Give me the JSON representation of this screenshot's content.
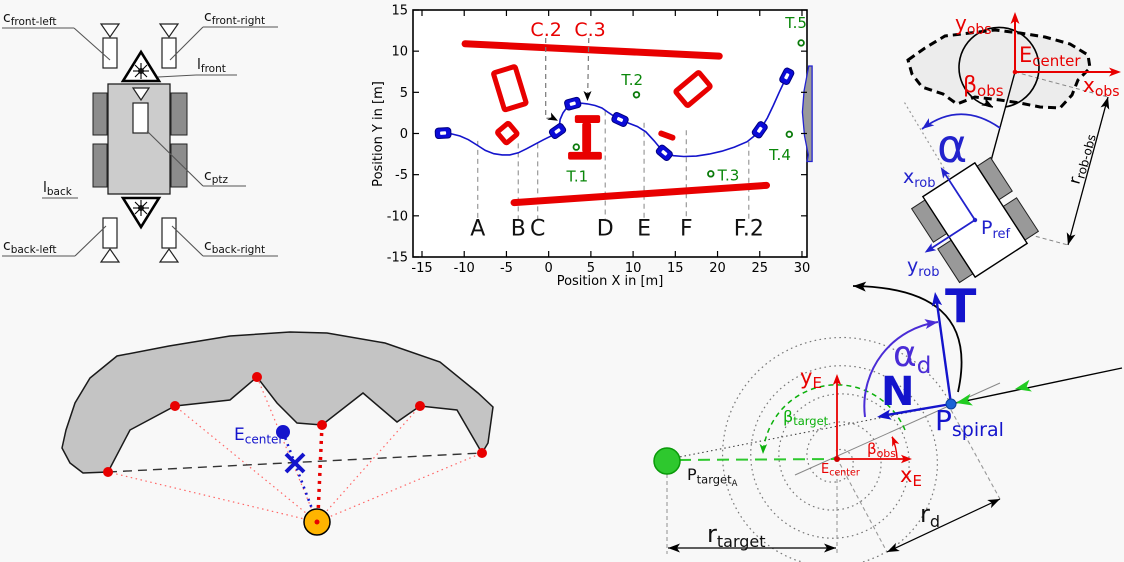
{
  "background": "#f8f8f8",
  "colors": {
    "red": "#e80000",
    "path_blue": "#1414cc",
    "marker_blue": "#0b0bd8",
    "green": "#0a870a",
    "bright_green": "#22cc22",
    "purple": "#4a2cd6",
    "orange": "#ffb400",
    "blob_gray": "#c4c4c4",
    "region_gray": "#9a9a9a",
    "dash_gray": "#999999"
  },
  "robot_top_view": {
    "labels": {
      "c_front_left": {
        "main": "c",
        "sub": "front-left"
      },
      "c_front_right": {
        "main": "c",
        "sub": "front-right"
      },
      "l_front": {
        "main": "l",
        "sub": "front"
      },
      "c_ptz": {
        "main": "c",
        "sub": "ptz"
      },
      "l_back": {
        "main": "l",
        "sub": "back"
      },
      "c_back_left": {
        "main": "c",
        "sub": "back-left"
      },
      "c_back_right": {
        "main": "c",
        "sub": "back-right"
      }
    }
  },
  "chart_data": {
    "type": "line",
    "title": "",
    "xlabel": "Position X in [m]",
    "ylabel": "Position Y in [m]",
    "xlim": [
      -16.1,
      30.6
    ],
    "ylim": [
      -15,
      15
    ],
    "grid": false,
    "x_ticks": [
      -15,
      -10,
      -5,
      0,
      5,
      10,
      15,
      20,
      25,
      30
    ],
    "y_ticks": [
      15,
      10,
      5,
      0,
      -5,
      -10,
      -15
    ],
    "trajectory": [
      [
        -12.5,
        0.05
      ],
      [
        -11.5,
        -0.05
      ],
      [
        -10.5,
        -0.3
      ],
      [
        -9.5,
        -0.75
      ],
      [
        -8.5,
        -1.4
      ],
      [
        -7.5,
        -2.05
      ],
      [
        -6.5,
        -2.45
      ],
      [
        -5.5,
        -2.6
      ],
      [
        -4.6,
        -2.6
      ],
      [
        -3.6,
        -2.35
      ],
      [
        -2.6,
        -1.85
      ],
      [
        -1.6,
        -1.3
      ],
      [
        -0.6,
        -0.75
      ],
      [
        0.4,
        -0.25
      ],
      [
        1.1,
        0.15
      ],
      [
        1.45,
        0.6
      ],
      [
        1.3,
        1.1
      ],
      [
        1.35,
        1.7
      ],
      [
        1.7,
        2.5
      ],
      [
        2.2,
        3.2
      ],
      [
        2.9,
        3.65
      ],
      [
        3.7,
        3.7
      ],
      [
        4.6,
        3.6
      ],
      [
        5.5,
        3.4
      ],
      [
        6.3,
        3.1
      ],
      [
        7.0,
        2.6
      ],
      [
        7.8,
        2.05
      ],
      [
        8.6,
        1.65
      ],
      [
        9.5,
        1.25
      ],
      [
        10.5,
        0.85
      ],
      [
        11.5,
        0.2
      ],
      [
        12.5,
        -0.9
      ],
      [
        13.3,
        -1.9
      ],
      [
        13.9,
        -2.45
      ],
      [
        14.8,
        -2.7
      ],
      [
        16.0,
        -2.8
      ],
      [
        17.5,
        -2.75
      ],
      [
        19.0,
        -2.5
      ],
      [
        20.5,
        -2.15
      ],
      [
        22.0,
        -1.65
      ],
      [
        23.5,
        -1.0
      ],
      [
        24.6,
        -0.1
      ],
      [
        25.2,
        0.7
      ],
      [
        25.9,
        1.9
      ],
      [
        26.6,
        3.4
      ],
      [
        27.3,
        5.0
      ],
      [
        27.9,
        6.3
      ],
      [
        28.3,
        7.0
      ]
    ],
    "robot_markers": [
      {
        "x": -12.5,
        "y": 0.05,
        "angle": -3
      },
      {
        "x": 1.05,
        "y": 0.3,
        "angle": -35
      },
      {
        "x": 2.85,
        "y": 3.62,
        "angle": -15
      },
      {
        "x": 8.45,
        "y": 1.7,
        "angle": 25
      },
      {
        "x": 13.7,
        "y": -2.35,
        "angle": 40
      },
      {
        "x": 25.0,
        "y": 0.45,
        "angle": -55
      },
      {
        "x": 28.2,
        "y": 6.95,
        "angle": -63
      }
    ],
    "targets": [
      {
        "label": "T.1",
        "x": 3.27,
        "y": -1.65,
        "label_x": 3.4,
        "label_y": -5.2
      },
      {
        "label": "T.2",
        "x": 10.4,
        "y": 4.7,
        "label_x": 9.9,
        "label_y": 6.5
      },
      {
        "label": "T.3",
        "x": 19.2,
        "y": -4.9,
        "label_x": 21.3,
        "label_y": -5.1
      },
      {
        "label": "T.4",
        "x": 28.5,
        "y": -0.1,
        "label_x": 27.4,
        "label_y": -2.6
      },
      {
        "label": "T.5",
        "x": 29.9,
        "y": 11.0,
        "label_x": 29.3,
        "label_y": 13.4
      }
    ],
    "camera_annotations": [
      {
        "label": "C.2",
        "label_x": -0.3,
        "label_y": 12.6,
        "line": [
          [
            -0.35,
            11.6
          ],
          [
            -0.35,
            1.85
          ],
          [
            0.7,
            1.85
          ]
        ],
        "arrow": {
          "x": 1.1,
          "y": 1.55,
          "angle": 28
        }
      },
      {
        "label": "C.3",
        "label_x": 4.9,
        "label_y": 12.6,
        "line": [
          [
            4.75,
            11.6
          ],
          [
            4.62,
            4.5
          ]
        ],
        "arrow": {
          "x": 4.6,
          "y": 3.95,
          "angle": 90
        }
      }
    ],
    "sections": [
      {
        "label": "A",
        "x": -8.4,
        "top": -0.9
      },
      {
        "label": "B",
        "x": -3.6,
        "top": -1.2
      },
      {
        "label": "C",
        "x": -1.3,
        "top": -1.2
      },
      {
        "label": "D",
        "x": 6.7,
        "top": 2.8
      },
      {
        "label": "E",
        "x": 11.3,
        "top": 1.3
      },
      {
        "label": "F",
        "x": 16.3,
        "top": 0.4
      },
      {
        "label": "F.2",
        "x": 23.7,
        "top": -1.0
      }
    ],
    "sections_bottom": -10.4,
    "sections_label_y": -12.4,
    "obstacles": {
      "walls": [
        {
          "x1": -9.9,
          "y1": 10.9,
          "x2": 20.2,
          "y2": 9.4
        },
        {
          "x1": -4.1,
          "y1": -8.4,
          "x2": 25.8,
          "y2": -6.3
        }
      ],
      "outlined_rects": [
        {
          "cx": -4.6,
          "cy": 5.5,
          "w": 2.7,
          "h": 4.7,
          "rot": -17
        },
        {
          "cx": -4.9,
          "cy": 0.05,
          "w": 1.75,
          "h": 1.75,
          "rot": -40
        },
        {
          "cx": 17.1,
          "cy": 5.4,
          "w": 3.6,
          "h": 2.3,
          "rot": -40
        }
      ],
      "filled_bars": [
        {
          "cx": 14.0,
          "cy": -0.25,
          "w": 2.1,
          "h": 0.7,
          "rot": 20
        }
      ],
      "ibeam": [
        {
          "cx": 4.6,
          "cy": 1.75,
          "w": 3.0,
          "h": 0.95
        },
        {
          "cx": 4.5,
          "cy": -0.5,
          "w": 1.05,
          "h": 3.6
        },
        {
          "cx": 4.3,
          "cy": -2.7,
          "w": 4.0,
          "h": 0.95
        }
      ],
      "shaded_region": [
        [
          30.8,
          8.2
        ],
        [
          30.25,
          5.2
        ],
        [
          30.05,
          2.6
        ],
        [
          30.3,
          -0.3
        ],
        [
          30.75,
          -2.6
        ],
        [
          30.6,
          -3.4
        ],
        [
          31.2,
          -3.4
        ],
        [
          31.2,
          8.2
        ]
      ]
    }
  },
  "obstacle_frame_diagram": {
    "labels": {
      "y_obs": {
        "main": "y",
        "sub": "obs"
      },
      "x_obs": {
        "main": "x",
        "sub": "obs"
      },
      "E_center": {
        "main": "E",
        "sub": "center"
      },
      "beta_obs": {
        "main": "β",
        "sub": "obs"
      },
      "alpha": "α",
      "x_rob": {
        "main": "x",
        "sub": "rob"
      },
      "y_rob": {
        "main": "y",
        "sub": "rob"
      },
      "P_ref": {
        "main": "P",
        "sub": "ref"
      },
      "r_rob_obs": {
        "main": "r",
        "sub": "rob-obs"
      }
    }
  },
  "tangent_diagram": {
    "labels": {
      "E_center": {
        "main": "E",
        "sub": "center"
      }
    }
  },
  "spiral_diagram": {
    "labels": {
      "y_E": {
        "main": "y",
        "sub": "E"
      },
      "x_E": {
        "main": "x",
        "sub": "E"
      },
      "E_center": {
        "main": "E",
        "sub": "center"
      },
      "beta_target": {
        "main": "β",
        "sub": "target"
      },
      "beta_obs": {
        "main": "β",
        "sub": "obs"
      },
      "P_spiral": {
        "main": "P",
        "sub": "spiral"
      },
      "P_target": {
        "main": "P",
        "sub": "target",
        "subsub": "A"
      },
      "alpha_d": {
        "main": "α",
        "sub": "d"
      },
      "T": "T",
      "N": "N",
      "r_target": {
        "main": "r",
        "sub": "target"
      },
      "r_d": {
        "main": "r",
        "sub": "d"
      }
    }
  }
}
